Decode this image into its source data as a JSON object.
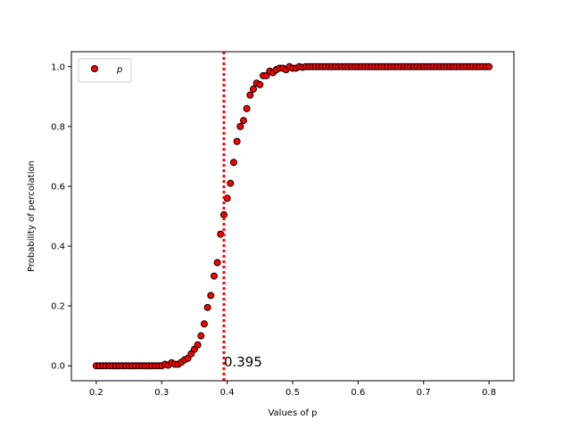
{
  "chart_data": {
    "type": "scatter",
    "title": "",
    "xlabel": "Values of p",
    "ylabel": "Probability of percolation",
    "xlim": [
      0.162,
      0.838
    ],
    "ylim": [
      -0.05,
      1.05
    ],
    "xticks": [
      0.2,
      0.3,
      0.4,
      0.5,
      0.6,
      0.7,
      0.8
    ],
    "xtick_labels": [
      "0.2",
      "0.3",
      "0.4",
      "0.5",
      "0.6",
      "0.7",
      "0.8"
    ],
    "yticks": [
      0.0,
      0.2,
      0.4,
      0.6,
      0.8,
      1.0
    ],
    "ytick_labels": [
      "0.0",
      "0.2",
      "0.4",
      "0.6",
      "0.8",
      "1.0"
    ],
    "grid": false,
    "legend": {
      "position": "top-left",
      "entries": [
        "p"
      ]
    },
    "series": [
      {
        "name": "p",
        "marker": "circle",
        "color": "#ff0000",
        "edgecolor": "#000000",
        "x": [
          0.2,
          0.205,
          0.21,
          0.215,
          0.22,
          0.225,
          0.23,
          0.235,
          0.24,
          0.245,
          0.25,
          0.255,
          0.26,
          0.265,
          0.27,
          0.275,
          0.28,
          0.285,
          0.29,
          0.295,
          0.3,
          0.305,
          0.31,
          0.315,
          0.32,
          0.325,
          0.33,
          0.335,
          0.34,
          0.345,
          0.35,
          0.355,
          0.36,
          0.365,
          0.37,
          0.375,
          0.38,
          0.385,
          0.39,
          0.395,
          0.4,
          0.405,
          0.41,
          0.415,
          0.42,
          0.425,
          0.43,
          0.435,
          0.44,
          0.445,
          0.45,
          0.455,
          0.46,
          0.465,
          0.47,
          0.475,
          0.48,
          0.485,
          0.49,
          0.495,
          0.5,
          0.505,
          0.51,
          0.515,
          0.52,
          0.525,
          0.53,
          0.535,
          0.54,
          0.545,
          0.55,
          0.555,
          0.56,
          0.565,
          0.57,
          0.575,
          0.58,
          0.585,
          0.59,
          0.595,
          0.6,
          0.605,
          0.61,
          0.615,
          0.62,
          0.625,
          0.63,
          0.635,
          0.64,
          0.645,
          0.65,
          0.655,
          0.66,
          0.665,
          0.67,
          0.675,
          0.68,
          0.685,
          0.69,
          0.695,
          0.7,
          0.705,
          0.71,
          0.715,
          0.72,
          0.725,
          0.73,
          0.735,
          0.74,
          0.745,
          0.75,
          0.755,
          0.76,
          0.765,
          0.77,
          0.775,
          0.78,
          0.785,
          0.79,
          0.795,
          0.8
        ],
        "y": [
          0,
          0,
          0,
          0,
          0,
          0,
          0,
          0,
          0,
          0,
          0,
          0,
          0,
          0,
          0,
          0,
          0,
          0,
          0,
          0,
          0,
          0.005,
          0.002,
          0.01,
          0.005,
          0.005,
          0.012,
          0.02,
          0.025,
          0.04,
          0.055,
          0.07,
          0.1,
          0.14,
          0.195,
          0.235,
          0.3,
          0.345,
          0.44,
          0.505,
          0.56,
          0.61,
          0.68,
          0.75,
          0.8,
          0.82,
          0.86,
          0.905,
          0.925,
          0.945,
          0.94,
          0.97,
          0.97,
          0.985,
          0.98,
          0.99,
          0.995,
          0.995,
          0.99,
          1.0,
          0.995,
          0.995,
          1.0,
          0.998,
          1,
          1,
          1,
          1,
          1,
          1,
          1,
          1,
          1,
          1,
          1,
          1,
          1,
          1,
          1,
          1,
          1,
          1,
          1,
          1,
          1,
          1,
          1,
          1,
          1,
          1,
          1,
          1,
          1,
          1,
          1,
          1,
          1,
          1,
          1,
          1,
          1,
          1,
          1,
          1,
          1,
          1,
          1,
          1,
          1,
          1,
          1,
          1,
          1,
          1,
          1,
          1,
          1,
          1,
          1,
          1,
          1
        ]
      }
    ],
    "vline": {
      "x": 0.395,
      "color": "#ff0000",
      "style": "dotted"
    },
    "annotations": [
      {
        "text": "0.395",
        "x": 0.395,
        "y": 0.0
      }
    ]
  }
}
